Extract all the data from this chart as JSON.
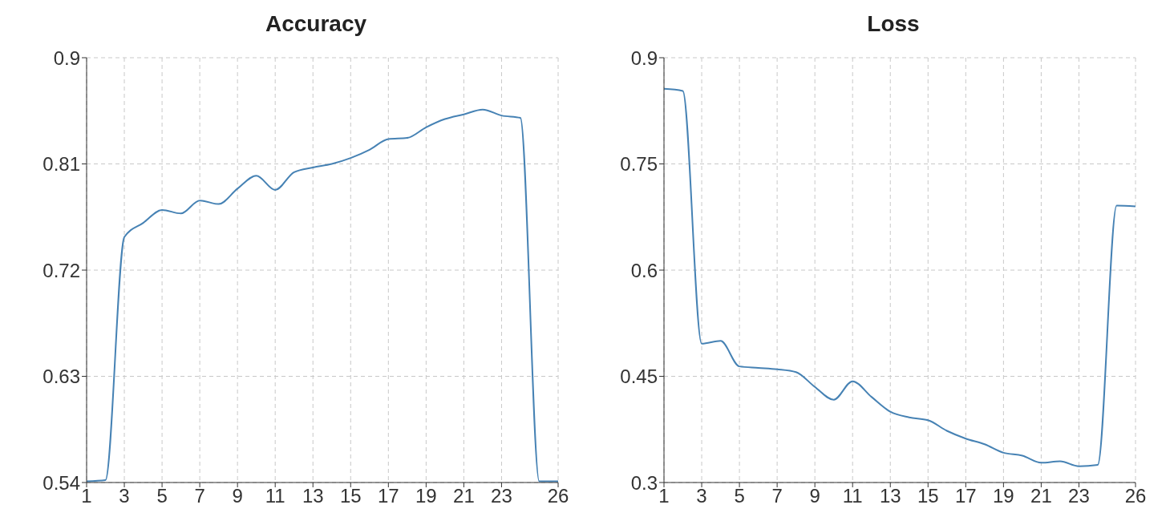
{
  "chart_data": [
    {
      "type": "line",
      "title": "Accuracy",
      "x": [
        1,
        2,
        3,
        4,
        5,
        6,
        7,
        8,
        9,
        10,
        11,
        12,
        13,
        14,
        15,
        16,
        17,
        18,
        19,
        20,
        21,
        22,
        23,
        24,
        25,
        26
      ],
      "series": [
        {
          "color": "#4682b4",
          "values": [
            0.541,
            0.542,
            0.748,
            0.76,
            0.771,
            0.768,
            0.779,
            0.776,
            0.789,
            0.8,
            0.788,
            0.803,
            0.807,
            0.81,
            0.815,
            0.822,
            0.831,
            0.832,
            0.841,
            0.848,
            0.852,
            0.856,
            0.851,
            0.849,
            0.541,
            0.541
          ]
        }
      ],
      "xlim": [
        1,
        26
      ],
      "xticks": [
        1,
        3,
        5,
        7,
        9,
        11,
        13,
        15,
        17,
        19,
        21,
        23,
        26
      ],
      "ylim": [
        0.54,
        0.9
      ],
      "yticks": [
        0.54,
        0.63,
        0.72,
        0.81,
        0.9
      ],
      "grid": true,
      "legend": false
    },
    {
      "type": "line",
      "title": "Loss",
      "x": [
        1,
        2,
        3,
        4,
        5,
        6,
        7,
        8,
        9,
        10,
        11,
        12,
        13,
        14,
        15,
        16,
        17,
        18,
        19,
        20,
        21,
        22,
        23,
        24,
        25,
        26
      ],
      "series": [
        {
          "color": "#4682b4",
          "values": [
            0.856,
            0.853,
            0.496,
            0.5,
            0.464,
            0.462,
            0.46,
            0.456,
            0.435,
            0.417,
            0.443,
            0.421,
            0.4,
            0.392,
            0.388,
            0.373,
            0.362,
            0.354,
            0.342,
            0.338,
            0.328,
            0.33,
            0.323,
            0.325,
            0.691,
            0.69
          ]
        }
      ],
      "xlim": [
        1,
        26
      ],
      "xticks": [
        1,
        3,
        5,
        7,
        9,
        11,
        13,
        15,
        17,
        19,
        21,
        23,
        26
      ],
      "ylim": [
        0.3,
        0.9
      ],
      "yticks": [
        0.3,
        0.45,
        0.6,
        0.75,
        0.9
      ],
      "grid": true,
      "legend": false
    }
  ]
}
